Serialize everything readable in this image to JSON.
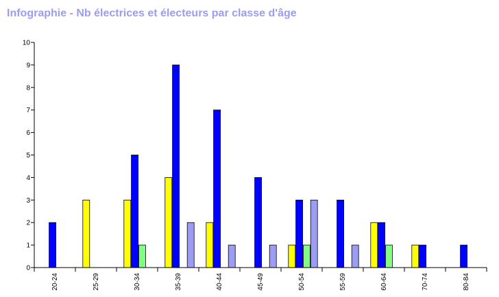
{
  "title": "Infographie - Nb électrices et électeurs par classe d'âge",
  "colors": {
    "title": "#9c9cf0",
    "series_1": "#ffff00",
    "series_2": "#0000ff",
    "series_3": "#80ff80",
    "series_4": "#9c9cf0",
    "axis": "#000000"
  },
  "chart_data": {
    "type": "bar",
    "title": "Infographie - Nb électrices et électeurs par classe d'âge",
    "xlabel": "",
    "ylabel": "",
    "ylim": [
      0,
      10
    ],
    "yticks": [
      0,
      1,
      2,
      3,
      4,
      5,
      6,
      7,
      8,
      9,
      10
    ],
    "grid": false,
    "legend": "none",
    "categories": [
      "20-24",
      "25-29",
      "30-34",
      "35-39",
      "40-44",
      "45-49",
      "50-54",
      "55-59",
      "60-64",
      "70-74",
      "80-84"
    ],
    "series": [
      {
        "color": "#ffff00",
        "values": [
          0,
          3,
          3,
          4,
          2,
          0,
          1,
          0,
          2,
          1,
          0
        ]
      },
      {
        "color": "#0000ff",
        "values": [
          2,
          0,
          5,
          9,
          7,
          4,
          3,
          3,
          2,
          1,
          1
        ]
      },
      {
        "color": "#80ff80",
        "values": [
          0,
          0,
          1,
          0,
          0,
          0,
          1,
          0,
          1,
          0,
          0
        ]
      },
      {
        "color": "#9c9cf0",
        "values": [
          0,
          0,
          0,
          2,
          1,
          1,
          3,
          1,
          0,
          0,
          0
        ]
      }
    ]
  }
}
